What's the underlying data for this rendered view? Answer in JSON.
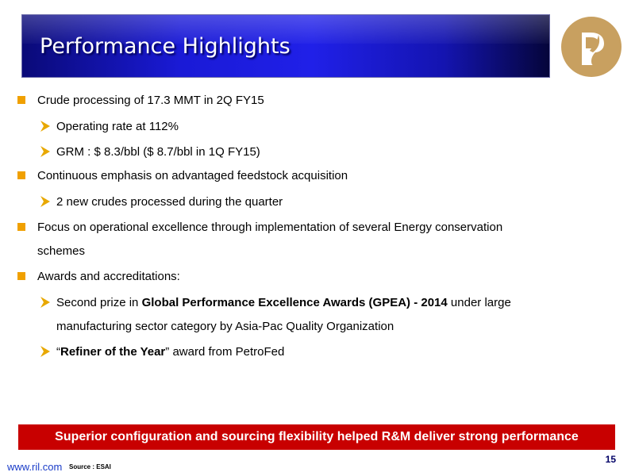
{
  "header": {
    "title": "Performance Highlights"
  },
  "logo": {
    "icon": "reliance-logo-icon",
    "color": "#c8a060"
  },
  "bullets": [
    {
      "text": "Crude processing of 17.3 MMT in 2Q FY15",
      "sub": [
        {
          "text": "Operating rate at 112%"
        },
        {
          "text": "GRM : $ 8.3/bbl ($ 8.7/bbl in 1Q FY15)"
        }
      ]
    },
    {
      "text": "Continuous emphasis on advantaged feedstock acquisition",
      "sub": [
        {
          "text": "2 new crudes processed during the quarter"
        }
      ]
    },
    {
      "text_line1": "Focus on operational excellence through implementation of several Energy conservation",
      "text_line2": "schemes"
    },
    {
      "text": "Awards and accreditations:",
      "sub": [
        {
          "pre": "Second prize in ",
          "bold": "Global Performance Excellence Awards (GPEA) - 2014",
          "post": " under large",
          "line2": "manufacturing sector category by Asia-Pac Quality Organization"
        },
        {
          "pre": "“",
          "bold": "Refiner of the Year",
          "post": "” award from PetroFed"
        }
      ]
    }
  ],
  "banner": {
    "text": "Superior configuration and sourcing flexibility helped R&M deliver strong performance"
  },
  "footer": {
    "link": "www.ril.com",
    "source": "Source : ESAI",
    "page_number": "15"
  },
  "colors": {
    "bullet_square": "#f0a000",
    "arrow": "#e8a800",
    "banner_bg": "#c80000",
    "title_bg": "#1a1ad6"
  }
}
